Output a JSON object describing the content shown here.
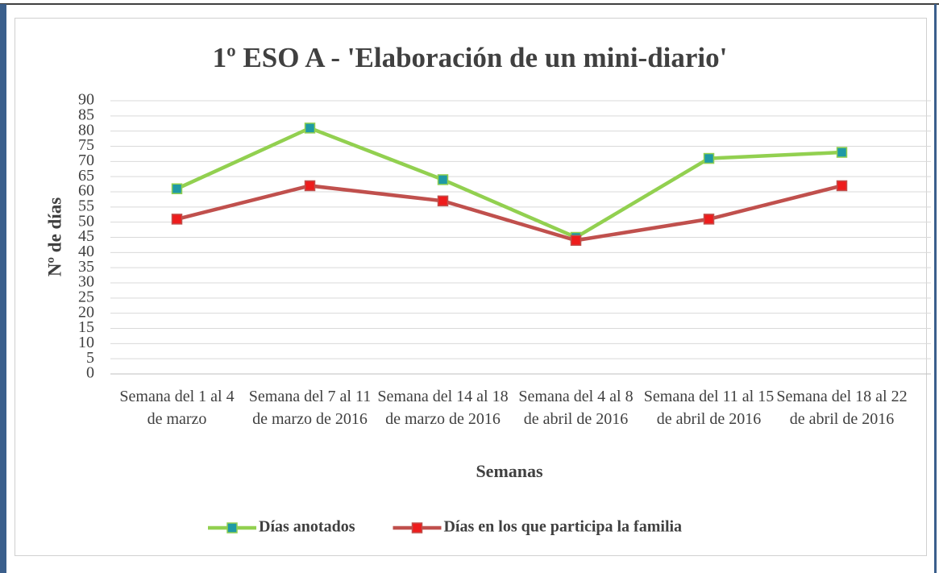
{
  "chart_data": {
    "type": "line",
    "title": "1º ESO A - 'Elaboración de un mini-diario'",
    "x_label": "Semanas",
    "y_label": "Nº de días",
    "categories": [
      "Semana del 1 al 4 de marzo",
      "Semana del 7 al 11 de marzo de 2016",
      "Semana del 14 al 18 de marzo de 2016",
      "Semana del 4 al 8 de abril de 2016",
      "Semana del 11 al 15 de abril de 2016",
      "Semana del 18 al 22 de abril de 2016"
    ],
    "series": [
      {
        "name": "Días anotados",
        "color": "#92d050",
        "marker_color": "#1f9aa5",
        "values": [
          61,
          81,
          64,
          45,
          71,
          73
        ]
      },
      {
        "name": "Días en los que participa la familia",
        "color": "#c0504d",
        "marker_color": "#ee1c1c",
        "values": [
          51,
          62,
          57,
          44,
          51,
          62
        ]
      }
    ],
    "ylim": [
      0,
      90
    ],
    "yticks": [
      0,
      5,
      10,
      15,
      20,
      25,
      30,
      35,
      40,
      45,
      50,
      55,
      60,
      65,
      70,
      75,
      80,
      85,
      90
    ],
    "grid": true,
    "legend": "bottom"
  }
}
